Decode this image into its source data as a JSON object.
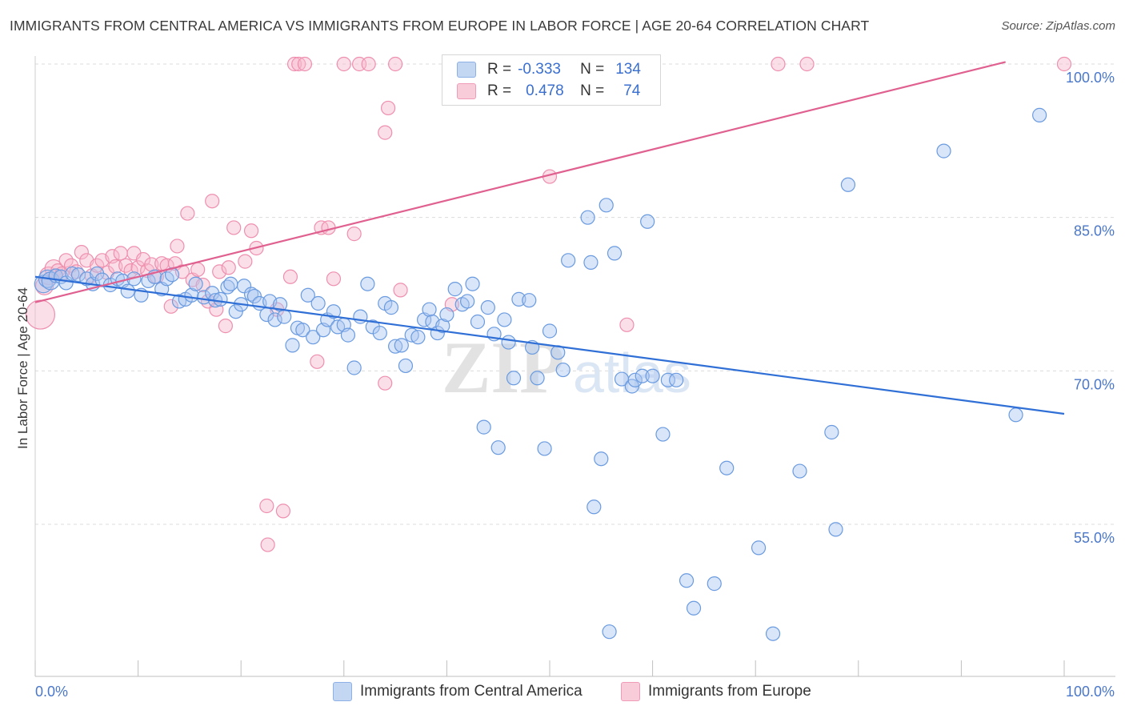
{
  "header": {
    "title": "IMMIGRANTS FROM CENTRAL AMERICA VS IMMIGRANTS FROM EUROPE IN LABOR FORCE | AGE 20-64 CORRELATION CHART",
    "source": "Source: ZipAtlas.com"
  },
  "legend": {
    "r_label": "R =",
    "n_label": "N =",
    "series": [
      {
        "r": "-0.333",
        "n": "134"
      },
      {
        "r": "0.478",
        "n": "74"
      }
    ]
  },
  "bottom_legend": [
    "Immigrants from Central America",
    "Immigrants from Europe"
  ],
  "colors": {
    "blue_fill": "#aac6ef",
    "blue_stroke": "#6a9be0",
    "blue_line": "#2f6fd6",
    "pink_fill": "#f6b8cb",
    "pink_stroke": "#ee8fae",
    "pink_line": "#e0608f",
    "grid": "#dcdcdc",
    "tick_text": "#4a77c9"
  },
  "watermark": {
    "zip": "ZIP",
    "atlas": "atlas"
  },
  "chart_data": {
    "type": "scatter",
    "title": "IMMIGRANTS FROM CENTRAL AMERICA VS IMMIGRANTS FROM EUROPE IN LABOR FORCE | AGE 20-64 CORRELATION CHART",
    "xlabel": "",
    "ylabel": "In Labor Force | Age 20-64",
    "xlim": [
      0,
      100
    ],
    "ylim": [
      40,
      102
    ],
    "x_tick_labels": [
      "0.0%",
      "100.0%"
    ],
    "y_ticks": [
      55,
      70,
      85,
      100
    ],
    "y_tick_labels": [
      "55.0%",
      "70.0%",
      "85.0%",
      "100.0%"
    ],
    "grid": true,
    "legend_position": "top-center",
    "series": [
      {
        "name": "Immigrants from Central America",
        "r": -0.333,
        "n": 134,
        "trend": {
          "x": [
            0,
            100
          ],
          "y": [
            79.2,
            65.8
          ]
        },
        "points": [
          [
            0.8,
            78.5
          ],
          [
            1.2,
            79.0
          ],
          [
            1.5,
            78.8
          ],
          [
            2.0,
            79.3
          ],
          [
            2.5,
            79.2
          ],
          [
            3.0,
            78.6
          ],
          [
            3.6,
            79.5
          ],
          [
            4.2,
            79.4
          ],
          [
            5.0,
            79.0
          ],
          [
            5.6,
            78.5
          ],
          [
            6.0,
            79.5
          ],
          [
            6.5,
            78.9
          ],
          [
            7.3,
            78.4
          ],
          [
            8.0,
            79.0
          ],
          [
            8.5,
            78.8
          ],
          [
            9.0,
            77.8
          ],
          [
            9.6,
            79.0
          ],
          [
            10.3,
            77.4
          ],
          [
            11.0,
            78.8
          ],
          [
            11.6,
            79.2
          ],
          [
            12.3,
            78.0
          ],
          [
            12.8,
            79.0
          ],
          [
            13.3,
            79.4
          ],
          [
            14.0,
            76.8
          ],
          [
            14.6,
            77.0
          ],
          [
            15.2,
            77.4
          ],
          [
            15.6,
            78.5
          ],
          [
            16.4,
            77.2
          ],
          [
            17.2,
            77.6
          ],
          [
            17.5,
            76.9
          ],
          [
            18.0,
            77.0
          ],
          [
            18.7,
            78.2
          ],
          [
            19.0,
            78.5
          ],
          [
            19.5,
            75.8
          ],
          [
            20.0,
            76.5
          ],
          [
            20.3,
            78.3
          ],
          [
            21.0,
            77.5
          ],
          [
            21.3,
            77.3
          ],
          [
            21.8,
            76.6
          ],
          [
            22.5,
            75.5
          ],
          [
            22.8,
            76.8
          ],
          [
            23.3,
            75.0
          ],
          [
            23.8,
            76.5
          ],
          [
            24.2,
            75.3
          ],
          [
            25.0,
            72.5
          ],
          [
            25.5,
            74.2
          ],
          [
            26.0,
            74.0
          ],
          [
            26.5,
            77.4
          ],
          [
            27.0,
            73.3
          ],
          [
            27.5,
            76.6
          ],
          [
            28.0,
            74.0
          ],
          [
            28.4,
            75.0
          ],
          [
            29.0,
            75.8
          ],
          [
            29.4,
            74.3
          ],
          [
            30.0,
            74.5
          ],
          [
            30.4,
            73.5
          ],
          [
            31.0,
            70.3
          ],
          [
            31.6,
            75.3
          ],
          [
            32.3,
            78.5
          ],
          [
            32.8,
            74.3
          ],
          [
            33.5,
            73.7
          ],
          [
            34.0,
            76.6
          ],
          [
            34.6,
            76.2
          ],
          [
            35.0,
            72.4
          ],
          [
            35.6,
            72.5
          ],
          [
            36.0,
            70.5
          ],
          [
            36.6,
            73.5
          ],
          [
            37.2,
            73.3
          ],
          [
            37.8,
            75.0
          ],
          [
            38.3,
            76.0
          ],
          [
            38.6,
            74.8
          ],
          [
            39.1,
            73.7
          ],
          [
            39.6,
            74.4
          ],
          [
            40.0,
            75.5
          ],
          [
            40.8,
            78.0
          ],
          [
            41.5,
            76.5
          ],
          [
            42.0,
            76.8
          ],
          [
            42.5,
            78.5
          ],
          [
            43.0,
            74.8
          ],
          [
            43.6,
            64.5
          ],
          [
            44.0,
            76.2
          ],
          [
            44.6,
            73.6
          ],
          [
            45.0,
            62.5
          ],
          [
            45.6,
            75.0
          ],
          [
            46.0,
            72.8
          ],
          [
            46.5,
            69.3
          ],
          [
            47.0,
            77.0
          ],
          [
            48.0,
            76.9
          ],
          [
            48.3,
            72.3
          ],
          [
            48.8,
            69.3
          ],
          [
            49.5,
            62.4
          ],
          [
            50.0,
            73.9
          ],
          [
            50.8,
            71.8
          ],
          [
            51.3,
            70.1
          ],
          [
            51.8,
            80.8
          ],
          [
            53.7,
            85.0
          ],
          [
            54.0,
            80.6
          ],
          [
            54.3,
            56.7
          ],
          [
            55.0,
            61.4
          ],
          [
            55.5,
            86.2
          ],
          [
            55.8,
            44.5
          ],
          [
            56.3,
            81.5
          ],
          [
            57.0,
            69.2
          ],
          [
            58.0,
            68.5
          ],
          [
            58.3,
            69.1
          ],
          [
            59.0,
            69.5
          ],
          [
            59.5,
            84.6
          ],
          [
            60.0,
            69.5
          ],
          [
            61.0,
            63.8
          ],
          [
            61.5,
            69.1
          ],
          [
            62.3,
            69.1
          ],
          [
            63.3,
            49.5
          ],
          [
            64.0,
            46.8
          ],
          [
            66.0,
            49.2
          ],
          [
            67.2,
            60.5
          ],
          [
            70.3,
            52.7
          ],
          [
            71.7,
            44.3
          ],
          [
            74.3,
            60.2
          ],
          [
            77.4,
            64.0
          ],
          [
            77.8,
            54.5
          ],
          [
            79.0,
            88.2
          ],
          [
            88.3,
            91.5
          ],
          [
            95.3,
            65.7
          ],
          [
            97.6,
            95.0
          ]
        ]
      },
      {
        "name": "Immigrants from Europe",
        "r": 0.478,
        "n": 74,
        "trend": {
          "x": [
            0,
            94.3
          ],
          "y": [
            76.7,
            100.2
          ]
        },
        "points": [
          [
            0.5,
            75.5
          ],
          [
            0.9,
            78.3
          ],
          [
            1.3,
            79.3
          ],
          [
            1.8,
            80.0
          ],
          [
            2.2,
            79.8
          ],
          [
            2.6,
            79.5
          ],
          [
            3.0,
            80.8
          ],
          [
            3.5,
            80.3
          ],
          [
            4.0,
            79.7
          ],
          [
            4.5,
            81.6
          ],
          [
            5.0,
            80.8
          ],
          [
            5.5,
            79.3
          ],
          [
            6.0,
            80.3
          ],
          [
            6.5,
            80.8
          ],
          [
            7.0,
            79.6
          ],
          [
            7.5,
            81.2
          ],
          [
            7.8,
            80.2
          ],
          [
            8.3,
            81.5
          ],
          [
            8.8,
            80.3
          ],
          [
            9.3,
            79.8
          ],
          [
            9.6,
            81.5
          ],
          [
            10.0,
            80.1
          ],
          [
            10.5,
            80.9
          ],
          [
            10.9,
            79.8
          ],
          [
            11.3,
            80.4
          ],
          [
            11.8,
            79.2
          ],
          [
            12.3,
            80.5
          ],
          [
            12.8,
            80.3
          ],
          [
            13.2,
            76.3
          ],
          [
            13.6,
            80.5
          ],
          [
            13.8,
            82.2
          ],
          [
            14.3,
            79.7
          ],
          [
            14.8,
            85.4
          ],
          [
            15.3,
            78.9
          ],
          [
            15.8,
            79.9
          ],
          [
            16.3,
            78.4
          ],
          [
            16.8,
            76.8
          ],
          [
            17.2,
            86.6
          ],
          [
            17.6,
            76.0
          ],
          [
            17.9,
            79.7
          ],
          [
            18.5,
            74.4
          ],
          [
            18.8,
            80.1
          ],
          [
            19.3,
            84.0
          ],
          [
            20.4,
            80.7
          ],
          [
            21.0,
            83.7
          ],
          [
            21.5,
            82.0
          ],
          [
            22.5,
            56.8
          ],
          [
            22.6,
            53.0
          ],
          [
            23.5,
            76.0
          ],
          [
            24.1,
            56.3
          ],
          [
            24.8,
            79.2
          ],
          [
            25.2,
            100.0
          ],
          [
            25.6,
            100.0
          ],
          [
            26.2,
            100.0
          ],
          [
            27.4,
            70.9
          ],
          [
            27.8,
            84.0
          ],
          [
            28.5,
            84.0
          ],
          [
            29.0,
            79.0
          ],
          [
            30.0,
            100.0
          ],
          [
            31.0,
            83.4
          ],
          [
            31.5,
            100.0
          ],
          [
            32.4,
            100.0
          ],
          [
            34.0,
            68.8
          ],
          [
            34.0,
            93.3
          ],
          [
            35.0,
            100.0
          ],
          [
            34.3,
            95.7
          ],
          [
            35.5,
            77.9
          ],
          [
            40.5,
            76.5
          ],
          [
            50.0,
            89.0
          ],
          [
            57.5,
            74.5
          ],
          [
            60.0,
            100.0
          ],
          [
            72.2,
            100.0
          ],
          [
            75.0,
            100.0
          ],
          [
            100.0,
            100.0
          ]
        ]
      }
    ]
  }
}
